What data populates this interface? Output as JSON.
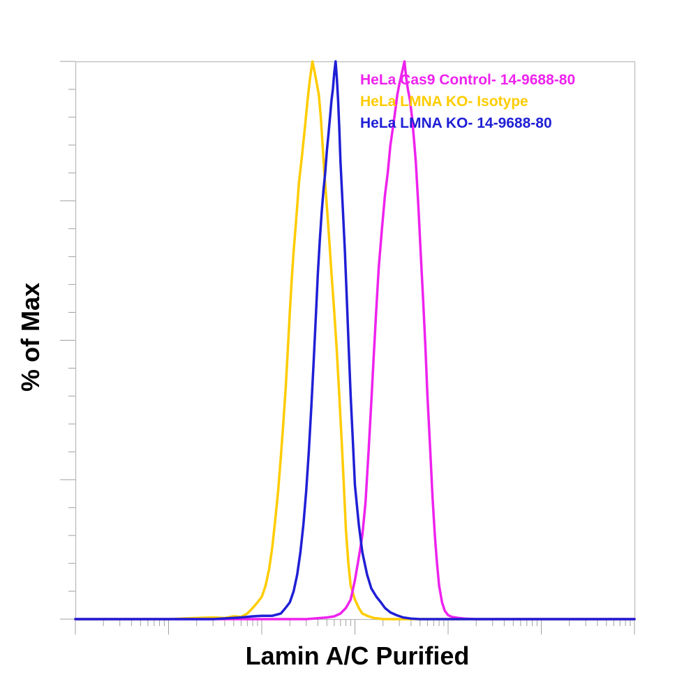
{
  "chart_data": {
    "type": "line",
    "subtype": "flow-cytometry-histogram",
    "xlabel": "Lamin A/C Purified",
    "ylabel": "% of Max",
    "x_scale": "log",
    "xlim": [
      0.1,
      100000
    ],
    "ylim": [
      0,
      100
    ],
    "grid": false,
    "legend_position": "top-right",
    "series": [
      {
        "name": "HeLa Cas9 Control- 14-9688-80",
        "color": "#ee22ee",
        "order": 1,
        "points": [
          [
            0.1,
            0
          ],
          [
            10,
            0
          ],
          [
            30,
            0
          ],
          [
            50,
            0.3
          ],
          [
            60,
            0.5
          ],
          [
            70,
            1
          ],
          [
            80,
            2
          ],
          [
            90,
            3.5
          ],
          [
            100,
            7
          ],
          [
            110,
            11
          ],
          [
            120,
            15
          ],
          [
            130,
            21
          ],
          [
            140,
            30
          ],
          [
            150,
            39
          ],
          [
            160,
            48
          ],
          [
            170,
            56
          ],
          [
            180,
            63
          ],
          [
            195,
            70
          ],
          [
            210,
            76
          ],
          [
            225,
            80
          ],
          [
            240,
            85
          ],
          [
            255,
            88
          ],
          [
            270,
            91
          ],
          [
            285,
            94
          ],
          [
            300,
            96
          ],
          [
            320,
            98
          ],
          [
            340,
            100
          ],
          [
            355,
            97
          ],
          [
            370,
            95
          ],
          [
            390,
            93
          ],
          [
            410,
            90
          ],
          [
            430,
            86
          ],
          [
            450,
            82
          ],
          [
            480,
            74
          ],
          [
            510,
            65
          ],
          [
            540,
            57
          ],
          [
            570,
            49
          ],
          [
            600,
            40
          ],
          [
            640,
            31
          ],
          [
            680,
            22
          ],
          [
            720,
            15
          ],
          [
            760,
            10
          ],
          [
            800,
            6
          ],
          [
            860,
            3
          ],
          [
            920,
            1.5
          ],
          [
            1000,
            0.7
          ],
          [
            1100,
            0.4
          ],
          [
            1300,
            0.2
          ],
          [
            1500,
            0.1
          ],
          [
            2000,
            0
          ],
          [
            100000,
            0
          ]
        ]
      },
      {
        "name": "HeLa LMNA KO- Isotype",
        "color": "#ffcc00",
        "order": 0,
        "points": [
          [
            0.1,
            0
          ],
          [
            1,
            0
          ],
          [
            2,
            0.2
          ],
          [
            3,
            0.3
          ],
          [
            4,
            0.2
          ],
          [
            5,
            0.5
          ],
          [
            6,
            0.4
          ],
          [
            7,
            1
          ],
          [
            8,
            2
          ],
          [
            9,
            3
          ],
          [
            10,
            4
          ],
          [
            11,
            6
          ],
          [
            12,
            9
          ],
          [
            13,
            13
          ],
          [
            14,
            18
          ],
          [
            15,
            23
          ],
          [
            16,
            29
          ],
          [
            17,
            35
          ],
          [
            18,
            41
          ],
          [
            19,
            48
          ],
          [
            20,
            55
          ],
          [
            21,
            61
          ],
          [
            22,
            66
          ],
          [
            23,
            70
          ],
          [
            24,
            74
          ],
          [
            25,
            78
          ],
          [
            27,
            83
          ],
          [
            29,
            88
          ],
          [
            31,
            93
          ],
          [
            33,
            97
          ],
          [
            35,
            100
          ],
          [
            37,
            98
          ],
          [
            39,
            96
          ],
          [
            41,
            94
          ],
          [
            43,
            90
          ],
          [
            45,
            85
          ],
          [
            47,
            80
          ],
          [
            50,
            74
          ],
          [
            53,
            68
          ],
          [
            56,
            62
          ],
          [
            60,
            55
          ],
          [
            64,
            48
          ],
          [
            68,
            40
          ],
          [
            72,
            32
          ],
          [
            76,
            24
          ],
          [
            80,
            16
          ],
          [
            85,
            10
          ],
          [
            90,
            6
          ],
          [
            100,
            3.5
          ],
          [
            110,
            2
          ],
          [
            120,
            1
          ],
          [
            140,
            0.5
          ],
          [
            160,
            0.2
          ],
          [
            200,
            0
          ],
          [
            100000,
            0
          ]
        ]
      },
      {
        "name": "HeLa LMNA KO- 14-9688-80",
        "color": "#1f1fd6",
        "order": 2,
        "points": [
          [
            0.1,
            0
          ],
          [
            3,
            0
          ],
          [
            6,
            0.3
          ],
          [
            8,
            0.5
          ],
          [
            10,
            0.6
          ],
          [
            13,
            0.6
          ],
          [
            16,
            1
          ],
          [
            18,
            2
          ],
          [
            20,
            3
          ],
          [
            22,
            5
          ],
          [
            24,
            8
          ],
          [
            26,
            12
          ],
          [
            28,
            17
          ],
          [
            30,
            23
          ],
          [
            32,
            30
          ],
          [
            34,
            38
          ],
          [
            36,
            46
          ],
          [
            38,
            54
          ],
          [
            40,
            62
          ],
          [
            42,
            68
          ],
          [
            44,
            73
          ],
          [
            46,
            77
          ],
          [
            48,
            80
          ],
          [
            50,
            84
          ],
          [
            52,
            87
          ],
          [
            54,
            90
          ],
          [
            56,
            93
          ],
          [
            58,
            95
          ],
          [
            60,
            98
          ],
          [
            62,
            100
          ],
          [
            64,
            97
          ],
          [
            66,
            93
          ],
          [
            68,
            88
          ],
          [
            70,
            82
          ],
          [
            74,
            74
          ],
          [
            78,
            66
          ],
          [
            82,
            57
          ],
          [
            86,
            48
          ],
          [
            90,
            40
          ],
          [
            95,
            32
          ],
          [
            100,
            24
          ],
          [
            110,
            17
          ],
          [
            120,
            12
          ],
          [
            135,
            8
          ],
          [
            150,
            5.5
          ],
          [
            170,
            4
          ],
          [
            190,
            3
          ],
          [
            210,
            2
          ],
          [
            240,
            1.2
          ],
          [
            280,
            0.7
          ],
          [
            330,
            0.3
          ],
          [
            400,
            0.1
          ],
          [
            500,
            0
          ],
          [
            100000,
            0
          ]
        ]
      }
    ]
  }
}
